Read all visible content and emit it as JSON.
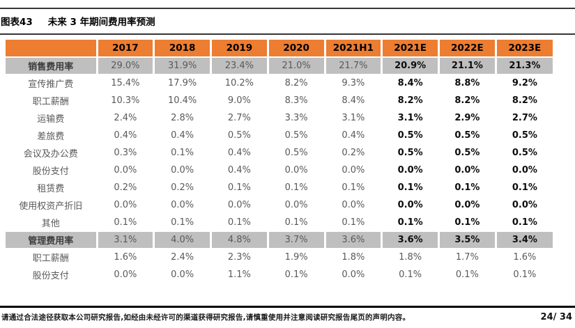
{
  "figure": {
    "label": "图表43",
    "title": "未来 3 年期间费用率预测"
  },
  "table": {
    "columns": [
      "",
      "2017",
      "2018",
      "2019",
      "2020",
      "2021H1",
      "2021E",
      "2022E",
      "2023E"
    ],
    "forecast_start": 5,
    "rows": [
      {
        "label": "销售费用率",
        "type": "total",
        "values": [
          "29.0%",
          "31.9%",
          "23.4%",
          "21.0%",
          "21.7%",
          "20.9%",
          "21.1%",
          "21.3%"
        ]
      },
      {
        "label": "宣传推广费",
        "type": "sub",
        "values": [
          "15.4%",
          "17.9%",
          "10.2%",
          "8.2%",
          "9.3%",
          "8.4%",
          "8.8%",
          "9.2%"
        ]
      },
      {
        "label": "职工薪酬",
        "type": "sub",
        "values": [
          "10.3%",
          "10.4%",
          "9.0%",
          "8.3%",
          "8.4%",
          "8.2%",
          "8.2%",
          "8.2%"
        ]
      },
      {
        "label": "运输费",
        "type": "sub",
        "values": [
          "2.4%",
          "2.8%",
          "2.7%",
          "3.3%",
          "3.1%",
          "3.1%",
          "2.9%",
          "2.7%"
        ]
      },
      {
        "label": "差旅费",
        "type": "sub",
        "values": [
          "0.4%",
          "0.4%",
          "0.5%",
          "0.5%",
          "0.4%",
          "0.5%",
          "0.5%",
          "0.5%"
        ]
      },
      {
        "label": "会议及办公费",
        "type": "sub",
        "values": [
          "0.3%",
          "0.1%",
          "0.4%",
          "0.5%",
          "0.2%",
          "0.5%",
          "0.5%",
          "0.5%"
        ]
      },
      {
        "label": "股份支付",
        "type": "sub",
        "values": [
          "0.0%",
          "0.0%",
          "0.4%",
          "0.0%",
          "0.0%",
          "0.0%",
          "0.0%",
          "0.0%"
        ]
      },
      {
        "label": "租赁费",
        "type": "sub",
        "values": [
          "0.2%",
          "0.2%",
          "0.1%",
          "0.1%",
          "0.1%",
          "0.1%",
          "0.1%",
          "0.1%"
        ]
      },
      {
        "label": "使用权资产折旧",
        "type": "sub",
        "values": [
          "0.0%",
          "0.0%",
          "0.0%",
          "0.0%",
          "0.0%",
          "0.0%",
          "0.0%",
          "0.0%"
        ]
      },
      {
        "label": "其他",
        "type": "sub",
        "values": [
          "0.1%",
          "0.1%",
          "0.1%",
          "0.1%",
          "0.1%",
          "0.1%",
          "0.1%",
          "0.1%"
        ]
      },
      {
        "label": "管理费用率",
        "type": "total",
        "values": [
          "3.1%",
          "4.0%",
          "4.8%",
          "3.7%",
          "3.6%",
          "3.6%",
          "3.5%",
          "3.4%"
        ]
      },
      {
        "label": "职工薪酬",
        "type": "subplain",
        "values": [
          "1.6%",
          "2.4%",
          "2.3%",
          "1.9%",
          "1.8%",
          "1.8%",
          "1.7%",
          "1.6%"
        ]
      },
      {
        "label": "股份支付",
        "type": "subplain",
        "values": [
          "0.0%",
          "0.0%",
          "1.1%",
          "0.1%",
          "0.0%",
          "0.1%",
          "0.1%",
          "0.1%"
        ]
      }
    ]
  },
  "footer": {
    "disclaimer": "请通过合法途径获取本公司研究报告,如经由未经许可的渠道获得研究报告,请慎重使用并注意阅读研究报告尾页的声明内容。",
    "page": "24/ 34"
  },
  "colors": {
    "header_bg": "#ED7D31",
    "total_row_bg": "#BFBFBF",
    "muted_text": "#595959",
    "strong_text": "#0d0d0d",
    "rule_dark": "#363636"
  }
}
